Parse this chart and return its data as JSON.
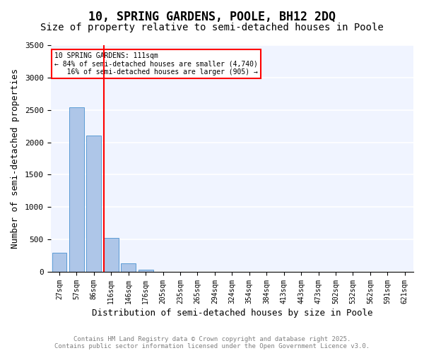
{
  "title_line1": "10, SPRING GARDENS, POOLE, BH12 2DQ",
  "title_line2": "Size of property relative to semi-detached houses in Poole",
  "xlabel": "Distribution of semi-detached houses by size in Poole",
  "ylabel": "Number of semi-detached properties",
  "categories": [
    "27sqm",
    "57sqm",
    "86sqm",
    "116sqm",
    "146sqm",
    "176sqm",
    "205sqm",
    "235sqm",
    "265sqm",
    "294sqm",
    "324sqm",
    "354sqm",
    "384sqm",
    "413sqm",
    "443sqm",
    "473sqm",
    "502sqm",
    "532sqm",
    "562sqm",
    "591sqm",
    "621sqm"
  ],
  "values": [
    300,
    2540,
    2110,
    520,
    130,
    30,
    5,
    0,
    0,
    0,
    0,
    0,
    0,
    0,
    0,
    0,
    0,
    0,
    0,
    0,
    0
  ],
  "bar_color": "#aec6e8",
  "bar_edge_color": "#5b9bd5",
  "property_line_color": "red",
  "red_line_x": 2.575,
  "annotation_text": "10 SPRING GARDENS: 111sqm\n← 84% of semi-detached houses are smaller (4,740)\n   16% of semi-detached houses are larger (905) →",
  "ylim": [
    0,
    3500
  ],
  "yticks": [
    0,
    500,
    1000,
    1500,
    2000,
    2500,
    3000,
    3500
  ],
  "background_color": "#f0f4ff",
  "grid_color": "#ffffff",
  "footer_line1": "Contains HM Land Registry data © Crown copyright and database right 2025.",
  "footer_line2": "Contains public sector information licensed under the Open Government Licence v3.0.",
  "title_fontsize": 12,
  "subtitle_fontsize": 10,
  "tick_fontsize": 7,
  "xlabel_fontsize": 9,
  "ylabel_fontsize": 9
}
